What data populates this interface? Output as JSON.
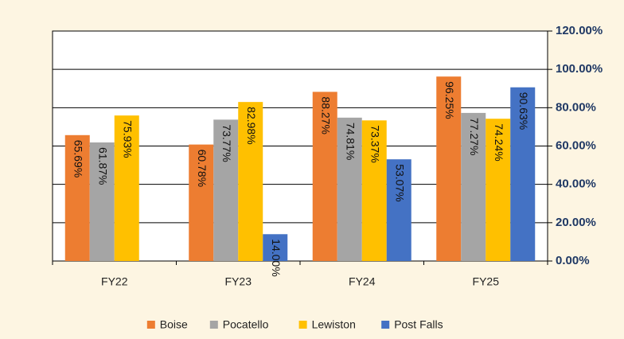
{
  "chart_data": {
    "type": "bar",
    "categories": [
      "FY22",
      "FY23",
      "FY24",
      "FY25"
    ],
    "series": [
      {
        "name": "Boise",
        "color": "#ed7d31",
        "values": [
          65.69,
          60.78,
          88.27,
          96.25
        ],
        "value_labels": [
          "65.69%",
          "60.78%",
          "88.27%",
          "96.25%"
        ]
      },
      {
        "name": "Pocatello",
        "color": "#a5a5a5",
        "values": [
          61.87,
          73.77,
          74.81,
          77.27
        ],
        "value_labels": [
          "61.87%",
          "73.77%",
          "74.81%",
          "77.27%"
        ]
      },
      {
        "name": "Lewiston",
        "color": "#ffc000",
        "values": [
          75.93,
          82.98,
          73.37,
          74.24
        ],
        "value_labels": [
          "75.93%",
          "82.98%",
          "73.37%",
          "74.24%"
        ]
      },
      {
        "name": "Post Falls",
        "color": "#4472c4",
        "values": [
          null,
          14.0,
          53.07,
          90.63
        ],
        "value_labels": [
          null,
          "14.00%",
          "53.07%",
          "90.63%"
        ]
      }
    ],
    "ylim": [
      0,
      120
    ],
    "yticks": [
      {
        "value": 0,
        "label": "0.00%"
      },
      {
        "value": 20,
        "label": "20.00%"
      },
      {
        "value": 40,
        "label": "40.00%"
      },
      {
        "value": 60,
        "label": "60.00%"
      },
      {
        "value": 80,
        "label": "80.00%"
      },
      {
        "value": 100,
        "label": "100.00%"
      },
      {
        "value": 120,
        "label": "120.00%"
      }
    ],
    "grid": true,
    "legend": "bottom"
  }
}
